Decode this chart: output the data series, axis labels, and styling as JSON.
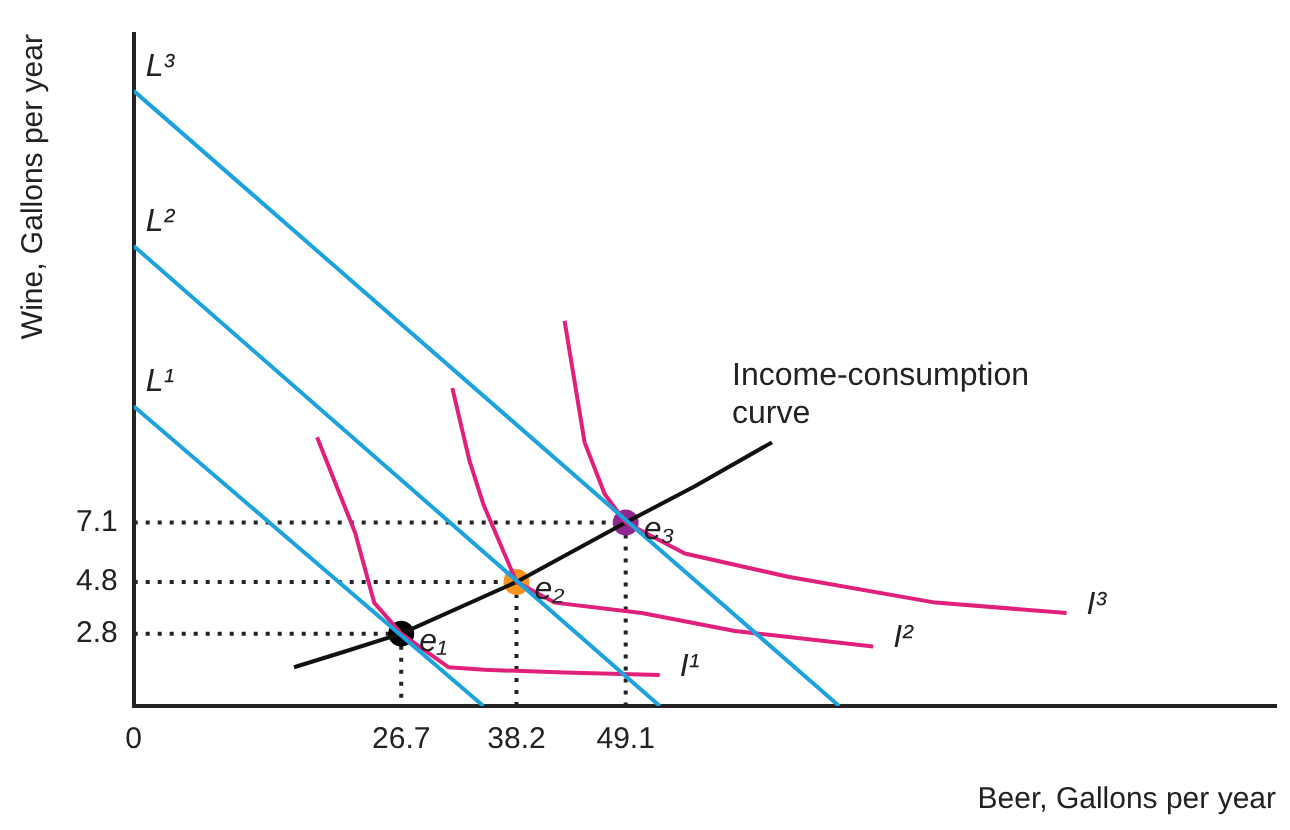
{
  "chart_data": {
    "type": "line",
    "xlabel": "Beer, Gallons per year",
    "ylabel": "Wine, Gallons per year",
    "xlim": [
      0,
      114
    ],
    "ylim": [
      0,
      26
    ],
    "xticks": [
      0,
      26.7,
      38.2,
      49.1
    ],
    "yticks": [
      2.8,
      4.8,
      7.1
    ],
    "grid": false,
    "legend": false,
    "marker": "none",
    "line_style": "solid",
    "series": [
      {
        "name": "L¹",
        "color": "#1ca3dc",
        "x": [
          0,
          34.9
        ],
        "values": [
          11.6,
          0
        ]
      },
      {
        "name": "L²",
        "color": "#1ca3dc",
        "x": [
          0,
          52.5
        ],
        "values": [
          17.8,
          0
        ]
      },
      {
        "name": "L³",
        "color": "#1ca3dc",
        "x": [
          0,
          70.4
        ],
        "values": [
          23.8,
          0
        ]
      },
      {
        "name": "I¹",
        "color": "#e0207a",
        "x": [
          18.3,
          22.1,
          24,
          26.7,
          31.4,
          35,
          43,
          52.5
        ],
        "values": [
          10.4,
          6.7,
          4.0,
          2.8,
          1.5,
          1.4,
          1.3,
          1.2
        ]
      },
      {
        "name": "I²",
        "color": "#e0207a",
        "x": [
          31.8,
          33.5,
          34.9,
          38.2,
          42,
          50.7,
          60,
          73.8
        ],
        "values": [
          12.3,
          9.5,
          7.8,
          4.8,
          4.0,
          3.6,
          2.9,
          2.3
        ]
      },
      {
        "name": "I³",
        "color": "#e0207a",
        "x": [
          43,
          45,
          47,
          49.1,
          55,
          65.3,
          80,
          93.1
        ],
        "values": [
          14.9,
          10.2,
          8.2,
          7.1,
          5.9,
          5.0,
          4.0,
          3.6
        ]
      },
      {
        "name": "Income-consumption curve",
        "color": "#111111",
        "x": [
          16,
          21,
          26.7,
          38.2,
          49.1,
          56,
          63.7
        ],
        "values": [
          1.5,
          2.1,
          2.8,
          4.8,
          7.1,
          8.5,
          10.2
        ]
      },
      {
        "name": "e₁",
        "type": "scatter",
        "marker": "circle",
        "color": "#000000",
        "x": [
          26.7
        ],
        "values": [
          2.8
        ]
      },
      {
        "name": "e₂",
        "type": "scatter",
        "marker": "circle",
        "color": "#f7941d",
        "x": [
          38.2
        ],
        "values": [
          4.8
        ]
      },
      {
        "name": "e₃",
        "type": "scatter",
        "marker": "circle",
        "color": "#92278f",
        "x": [
          49.1
        ],
        "values": [
          7.1
        ]
      }
    ]
  }
}
